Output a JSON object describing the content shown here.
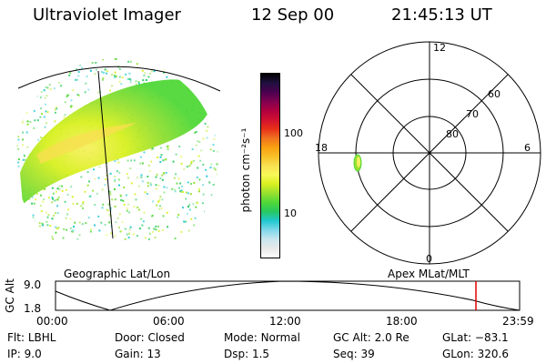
{
  "header": {
    "instrument": "Ultraviolet Imager",
    "date": "12 Sep 00",
    "time": "21:45:13 UT"
  },
  "colorbar": {
    "label": "photon cm⁻²s⁻¹",
    "ticks": [
      "100",
      "10"
    ],
    "colors": [
      "#ffffff",
      "#e8e8e8",
      "#c8e6ee",
      "#7ed8ea",
      "#20c8d0",
      "#28c860",
      "#50d838",
      "#98e030",
      "#d8f020",
      "#f8f858",
      "#f8e050",
      "#f8c028",
      "#f8a010",
      "#f07020",
      "#e83018",
      "#d01030",
      "#b00040",
      "#800050",
      "#4a0050",
      "#201040",
      "#000000"
    ]
  },
  "polar": {
    "mlt_labels": {
      "top": "12",
      "left": "18",
      "right": "6",
      "bottom": "0"
    },
    "lat_labels": [
      "60",
      "70",
      "80"
    ]
  },
  "left_panel": {
    "label": "Geographic Lat/Lon"
  },
  "right_panel": {
    "label": "Apex MLat/MLT"
  },
  "altitude_plot": {
    "axis_title": "GC Alt",
    "y_ticks": [
      "9.0",
      "1.8"
    ],
    "x_ticks": [
      "00:00",
      "06:00",
      "12:00",
      "18:00",
      "23:59"
    ],
    "marker_color": "#e00000"
  },
  "status": {
    "row1": [
      {
        "key": "Flt:",
        "value": "LBHL"
      },
      {
        "key": "Door:",
        "value": "Closed"
      },
      {
        "key": "Mode:",
        "value": "Normal"
      },
      {
        "key": "GC Alt:",
        "value": "2.0 Re"
      },
      {
        "key": "GLat:",
        "value": "−83.1"
      }
    ],
    "row2": [
      {
        "key": "IP:",
        "value": "9.0"
      },
      {
        "key": "Gain:",
        "value": "13"
      },
      {
        "key": "Dsp:",
        "value": "1.5"
      },
      {
        "key": "Seq:",
        "value": "39"
      },
      {
        "key": "GLon:",
        "value": "320.6"
      }
    ]
  }
}
